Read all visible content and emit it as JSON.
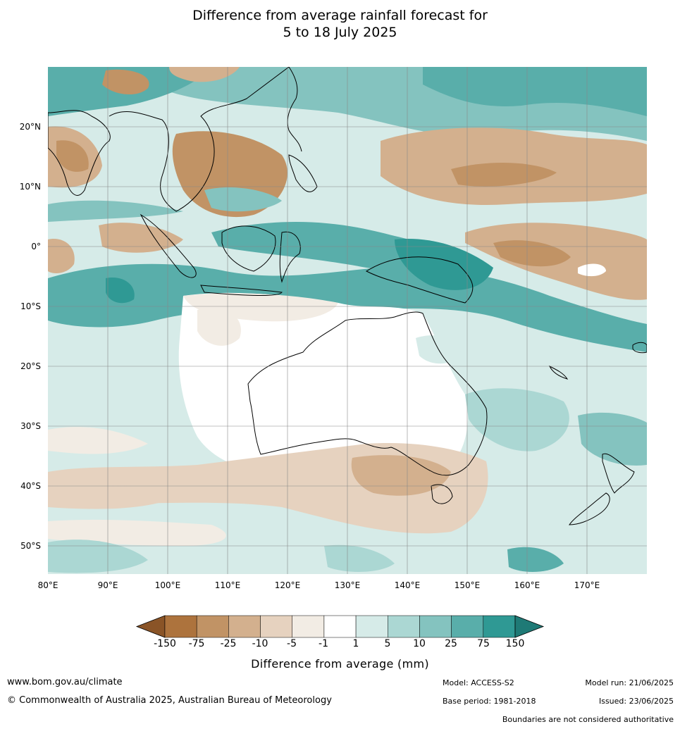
{
  "title": {
    "line1": "Difference from average rainfall forecast for",
    "line2": "5 to 18 July 2025"
  },
  "map": {
    "lon_ticks": [
      "80°E",
      "90°E",
      "100°E",
      "110°E",
      "120°E",
      "130°E",
      "140°E",
      "150°E",
      "160°E",
      "170°E"
    ],
    "lat_ticks": [
      "20°N",
      "10°N",
      "0°",
      "10°S",
      "20°S",
      "30°S",
      "40°S",
      "50°S"
    ],
    "lon_range": [
      80,
      180
    ],
    "lat_range": [
      -55,
      30
    ],
    "grid": true
  },
  "legend": {
    "title": "Difference from average (mm)",
    "labels": [
      "-150",
      "-75",
      "-25",
      "-10",
      "-5",
      "-1",
      "1",
      "5",
      "10",
      "25",
      "75",
      "150"
    ],
    "colors": [
      "#8a5427",
      "#ad733d",
      "#c19365",
      "#d3b08e",
      "#e6d2bf",
      "#f2ece4",
      "#ffffff",
      "#d6ebe8",
      "#abd7d3",
      "#84c3bf",
      "#59aeaa",
      "#2f9994",
      "#1f7a76"
    ]
  },
  "footer": {
    "website": "www.bom.gov.au/climate",
    "copyright": "© Commonwealth of Australia 2025, Australian Bureau of Meteorology",
    "model": "Model: ACCESS-S2",
    "base_period": "Base period: 1981-2018",
    "model_run": "Model run: 21/06/2025",
    "issued": "Issued: 23/06/2025",
    "disclaimer": "Boundaries are not considered authoritative"
  }
}
